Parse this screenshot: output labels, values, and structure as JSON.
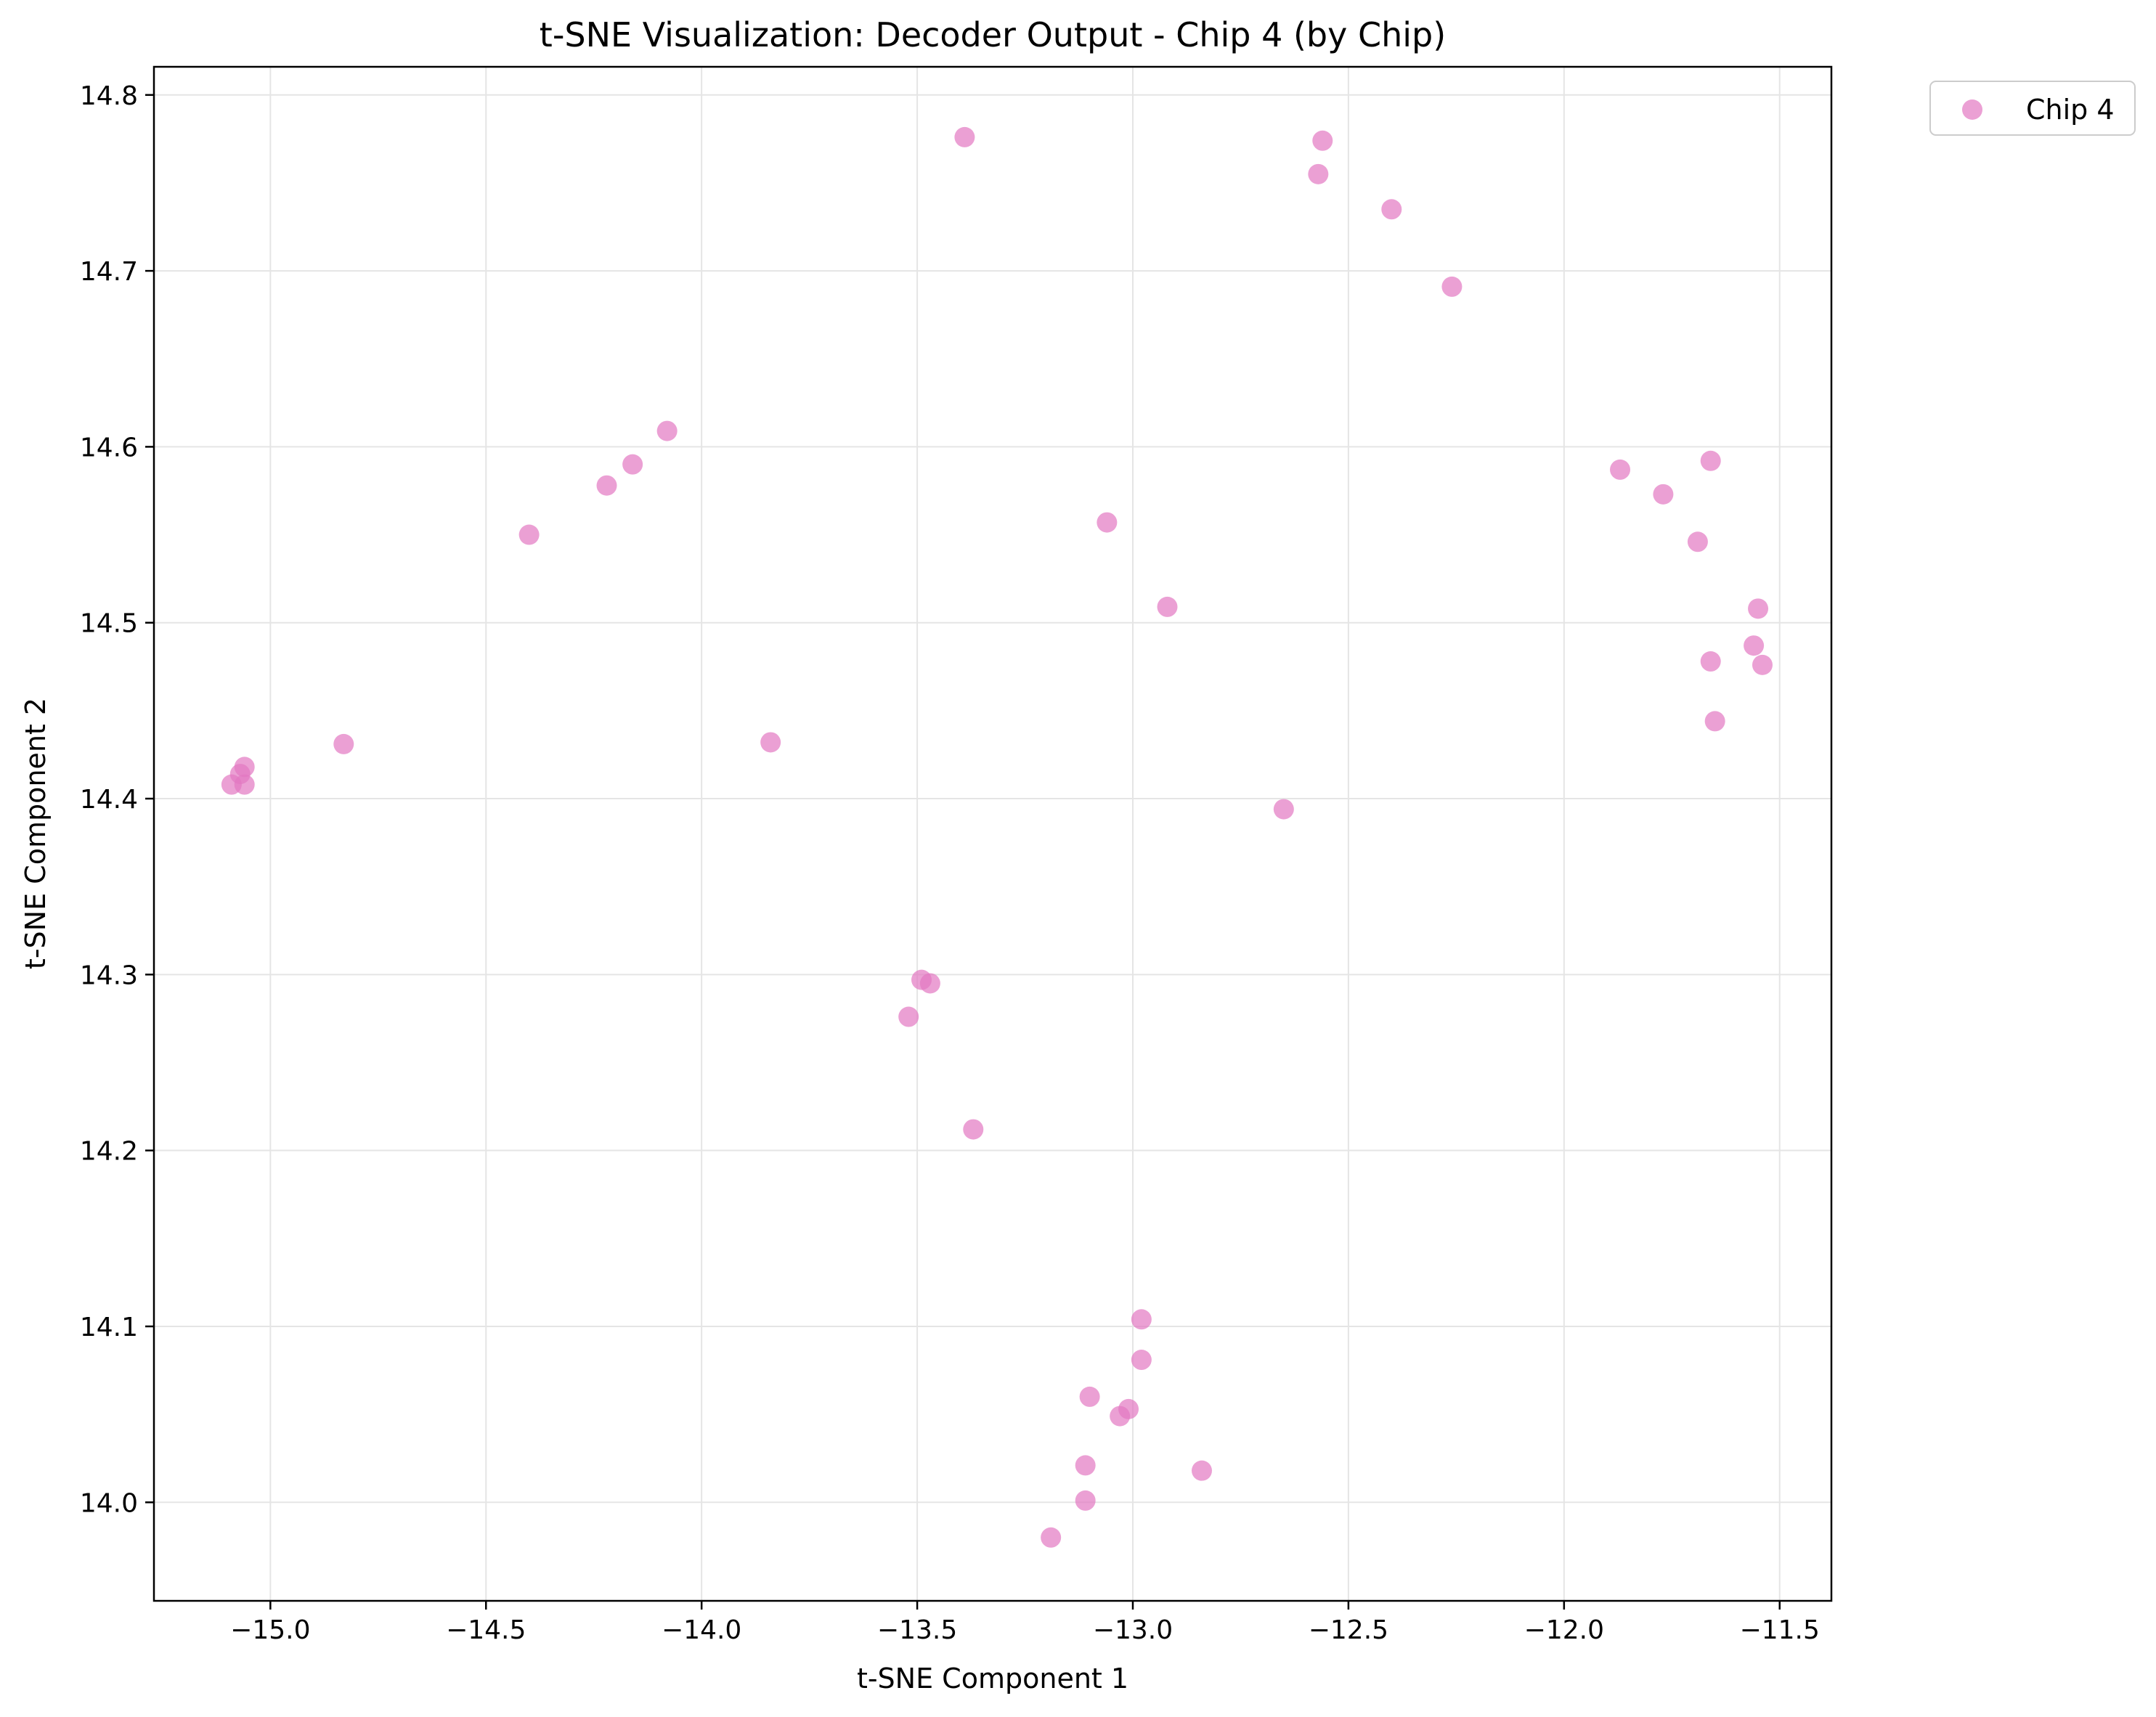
{
  "chart_data": {
    "type": "scatter",
    "title": "t-SNE Visualization: Decoder Output - Chip 4 (by Chip)",
    "xlabel": "t-SNE Component 1",
    "ylabel": "t-SNE Component 2",
    "xlim": [
      -15.27,
      -11.38
    ],
    "ylim": [
      13.944,
      14.816
    ],
    "xticks": [
      -15.0,
      -14.5,
      -14.0,
      -13.5,
      -13.0,
      -12.5,
      -12.0,
      -11.5
    ],
    "xtick_labels": [
      "−15.0",
      "−14.5",
      "−14.0",
      "−13.5",
      "−13.0",
      "−12.5",
      "−12.0",
      "−11.5"
    ],
    "yticks": [
      14.0,
      14.1,
      14.2,
      14.3,
      14.4,
      14.5,
      14.6,
      14.7,
      14.8
    ],
    "ytick_labels": [
      "14.0",
      "14.1",
      "14.2",
      "14.3",
      "14.4",
      "14.5",
      "14.6",
      "14.7",
      "14.8"
    ],
    "grid": true,
    "legend_position": "outside-top-right",
    "series": [
      {
        "name": "Chip 4",
        "color": "#e377c2",
        "points": [
          [
            -13.39,
            14.776
          ],
          [
            -12.56,
            14.774
          ],
          [
            -12.57,
            14.755
          ],
          [
            -12.4,
            14.735
          ],
          [
            -12.26,
            14.691
          ],
          [
            -14.08,
            14.609
          ],
          [
            -14.16,
            14.59
          ],
          [
            -14.22,
            14.578
          ],
          [
            -14.4,
            14.55
          ],
          [
            -11.87,
            14.587
          ],
          [
            -11.77,
            14.573
          ],
          [
            -11.66,
            14.592
          ],
          [
            -11.69,
            14.546
          ],
          [
            -13.06,
            14.557
          ],
          [
            -12.92,
            14.509
          ],
          [
            -11.55,
            14.508
          ],
          [
            -11.56,
            14.487
          ],
          [
            -11.66,
            14.478
          ],
          [
            -11.54,
            14.476
          ],
          [
            -11.65,
            14.444
          ],
          [
            -14.83,
            14.431
          ],
          [
            -13.84,
            14.432
          ],
          [
            -15.06,
            14.418
          ],
          [
            -15.07,
            14.414
          ],
          [
            -15.09,
            14.408
          ],
          [
            -15.06,
            14.408
          ],
          [
            -12.65,
            14.394
          ],
          [
            -13.49,
            14.297
          ],
          [
            -13.47,
            14.295
          ],
          [
            -13.52,
            14.276
          ],
          [
            -13.37,
            14.212
          ],
          [
            -12.98,
            14.104
          ],
          [
            -12.98,
            14.081
          ],
          [
            -13.1,
            14.06
          ],
          [
            -13.01,
            14.053
          ],
          [
            -13.03,
            14.049
          ],
          [
            -13.11,
            14.021
          ],
          [
            -12.84,
            14.018
          ],
          [
            -13.11,
            14.001
          ],
          [
            -13.19,
            13.98
          ]
        ]
      }
    ]
  }
}
